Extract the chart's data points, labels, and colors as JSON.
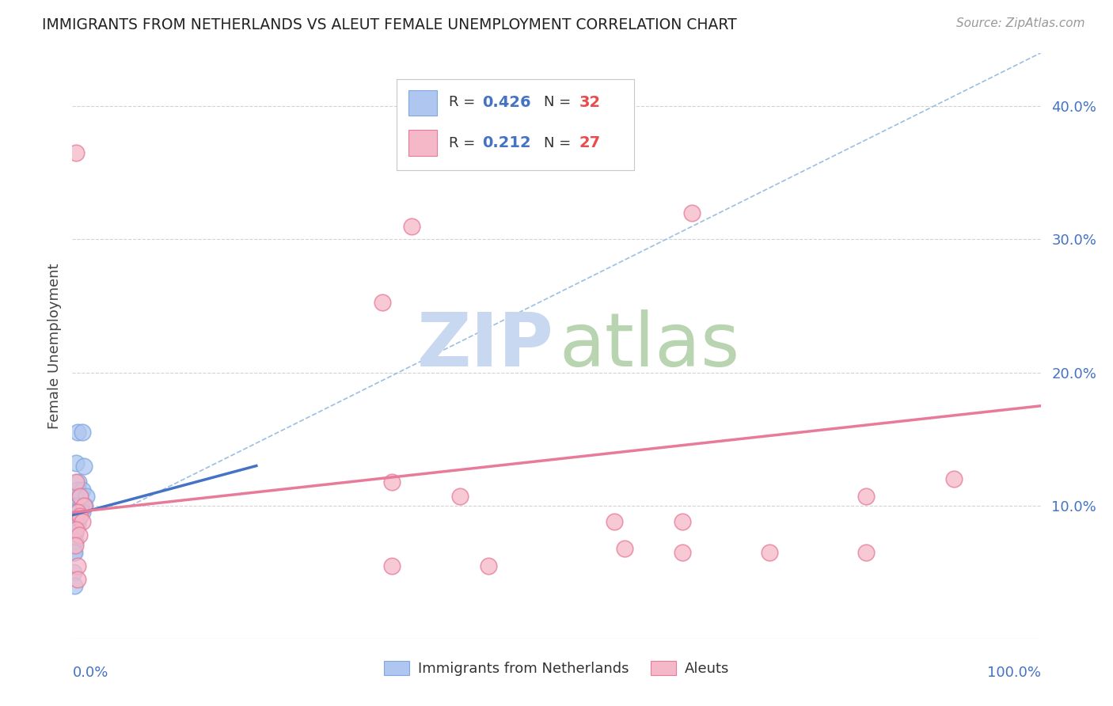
{
  "title": "IMMIGRANTS FROM NETHERLANDS VS ALEUT FEMALE UNEMPLOYMENT CORRELATION CHART",
  "source": "Source: ZipAtlas.com",
  "ylabel": "Female Unemployment",
  "ytick_values": [
    0.1,
    0.2,
    0.3,
    0.4
  ],
  "xlim": [
    0,
    1.0
  ],
  "ylim": [
    0,
    0.44
  ],
  "blue_scatter": [
    [
      0.005,
      0.155
    ],
    [
      0.01,
      0.155
    ],
    [
      0.004,
      0.132
    ],
    [
      0.012,
      0.13
    ],
    [
      0.006,
      0.118
    ],
    [
      0.005,
      0.112
    ],
    [
      0.01,
      0.112
    ],
    [
      0.002,
      0.107
    ],
    [
      0.008,
      0.107
    ],
    [
      0.014,
      0.107
    ],
    [
      0.002,
      0.1
    ],
    [
      0.005,
      0.1
    ],
    [
      0.009,
      0.1
    ],
    [
      0.013,
      0.1
    ],
    [
      0.002,
      0.095
    ],
    [
      0.004,
      0.095
    ],
    [
      0.007,
      0.095
    ],
    [
      0.01,
      0.095
    ],
    [
      0.001,
      0.09
    ],
    [
      0.003,
      0.09
    ],
    [
      0.006,
      0.09
    ],
    [
      0.001,
      0.085
    ],
    [
      0.003,
      0.085
    ],
    [
      0.005,
      0.085
    ],
    [
      0.001,
      0.08
    ],
    [
      0.003,
      0.08
    ],
    [
      0.001,
      0.073
    ],
    [
      0.003,
      0.073
    ],
    [
      0.001,
      0.065
    ],
    [
      0.002,
      0.065
    ],
    [
      0.001,
      0.05
    ],
    [
      0.002,
      0.04
    ]
  ],
  "pink_scatter": [
    [
      0.004,
      0.365
    ],
    [
      0.35,
      0.31
    ],
    [
      0.64,
      0.32
    ],
    [
      0.32,
      0.253
    ],
    [
      0.33,
      0.118
    ],
    [
      0.4,
      0.107
    ],
    [
      0.56,
      0.088
    ],
    [
      0.63,
      0.088
    ],
    [
      0.004,
      0.118
    ],
    [
      0.008,
      0.107
    ],
    [
      0.012,
      0.1
    ],
    [
      0.005,
      0.095
    ],
    [
      0.008,
      0.092
    ],
    [
      0.01,
      0.088
    ],
    [
      0.004,
      0.082
    ],
    [
      0.007,
      0.078
    ],
    [
      0.003,
      0.07
    ],
    [
      0.82,
      0.107
    ],
    [
      0.91,
      0.12
    ],
    [
      0.57,
      0.068
    ],
    [
      0.63,
      0.065
    ],
    [
      0.72,
      0.065
    ],
    [
      0.82,
      0.065
    ],
    [
      0.33,
      0.055
    ],
    [
      0.43,
      0.055
    ],
    [
      0.005,
      0.055
    ],
    [
      0.005,
      0.045
    ]
  ],
  "blue_line": {
    "x0": 0.0,
    "x1": 0.19,
    "y0": 0.093,
    "y1": 0.13
  },
  "pink_line": {
    "x0": 0.0,
    "x1": 1.0,
    "y0": 0.095,
    "y1": 0.175
  },
  "diagonal_line": {
    "x0": 0.06,
    "x1": 1.0,
    "y0": 0.1,
    "y1": 0.44
  },
  "grid_color": "#c8c8c8",
  "blue_color": "#aec6f0",
  "blue_edge": "#7fa8e0",
  "pink_color": "#f5b8c8",
  "pink_edge": "#e87a9a",
  "blue_line_color": "#4472c4",
  "pink_line_color": "#e87a9a",
  "diagonal_color": "#90b8e0",
  "background_color": "#ffffff"
}
